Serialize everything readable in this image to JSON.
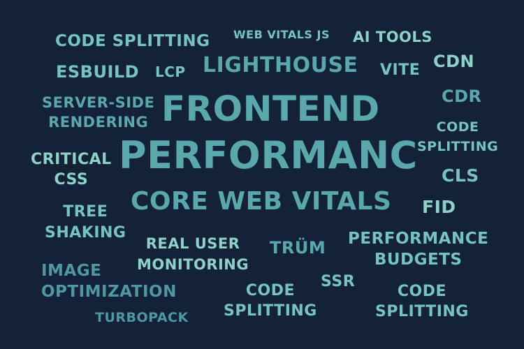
{
  "words": {
    "code_splitting_1": "CODE SPLITTING",
    "web_vitals_js": "WEB VITALS JS",
    "ai_tools": "AI TOOLS",
    "esbuild": "ESBUILD",
    "lcp": "LCP",
    "lighthouse": "LIGHTHOUSE",
    "vite": "VITE",
    "cdn": "CDN",
    "ssr_line1": "SERVER-SIDE",
    "ssr_line2": "RENDERING",
    "frontend": "FRONTEND",
    "cdr": "CDR",
    "code_splitting_2_line1": "CODE",
    "code_splitting_2_line2": "SPLITTING",
    "critical_line1": "CRITICAL",
    "critical_line2": "CSS",
    "performance": "PERFORMANC",
    "cls": "CLS",
    "core_web_vitals": "CORE WEB VITALS",
    "fid": "FID",
    "tree_line1": "TREE",
    "tree_line2": "SHAKING",
    "rum_line1": "REAL USER",
    "rum_line2": "MONITORING",
    "rum": "TRÜM",
    "budgets_line1": "PERFORMANCE",
    "budgets_line2": "BUDGETS",
    "image_line1": "IMAGE",
    "image_line2": "OPTIMIZATION",
    "code_splitting_3_line1": "CODE",
    "code_splitting_3_line2": "SPLITTING",
    "ssr": "SSR",
    "code_splitting_4_line1": "CODE",
    "code_splitting_4_line2": "SPLITTING",
    "turbopack": "TURBOPACK"
  },
  "colors": {
    "background": "#142238",
    "teal": "#5aa7ac",
    "light_teal": "#77c3c2",
    "pale_teal": "#8fd0c9",
    "deep_teal": "#4f97a3"
  }
}
